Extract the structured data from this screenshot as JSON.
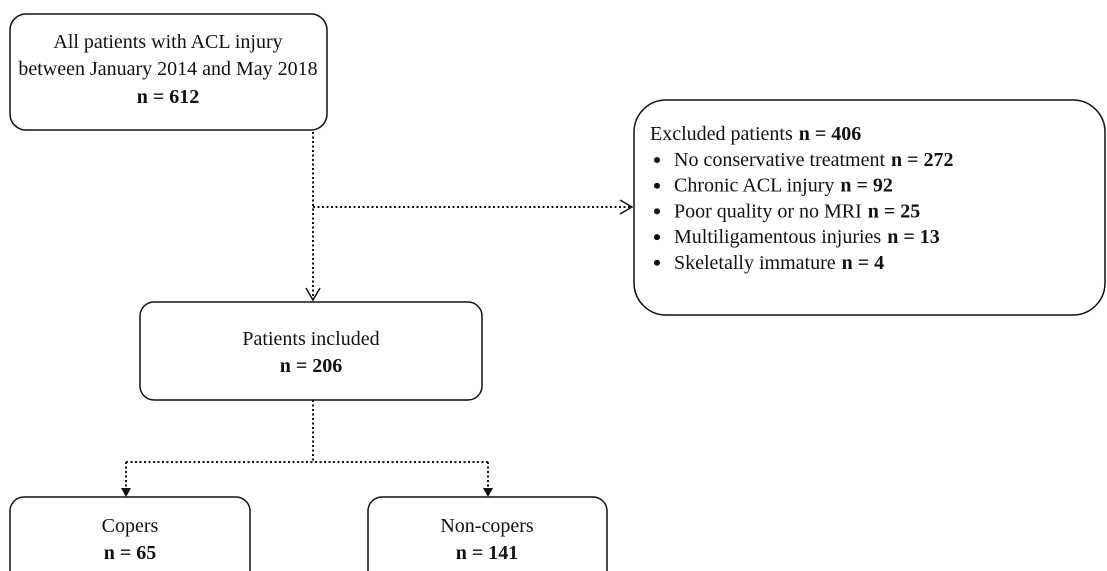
{
  "top": {
    "lines": [
      "All patients with ACL injury",
      "between January 2014 and May 2018"
    ],
    "count": "n = 612"
  },
  "excluded": {
    "label": "Excluded patients",
    "count": "n = 406",
    "items": [
      {
        "label": "No conservative treatment",
        "count": "n = 272"
      },
      {
        "label": "Chronic ACL injury",
        "count": "n = 92"
      },
      {
        "label": "Poor quality or no MRI",
        "count": "n = 25"
      },
      {
        "label": "Multiligamentous injuries",
        "count": "n = 13"
      },
      {
        "label": "Skeletally immature",
        "count": "n = 4"
      }
    ]
  },
  "included": {
    "label": "Patients included",
    "count": "n = 206"
  },
  "groups": [
    {
      "label": "Copers",
      "count": "n = 65"
    },
    {
      "label": "Non-copers",
      "count": "n = 141"
    }
  ]
}
